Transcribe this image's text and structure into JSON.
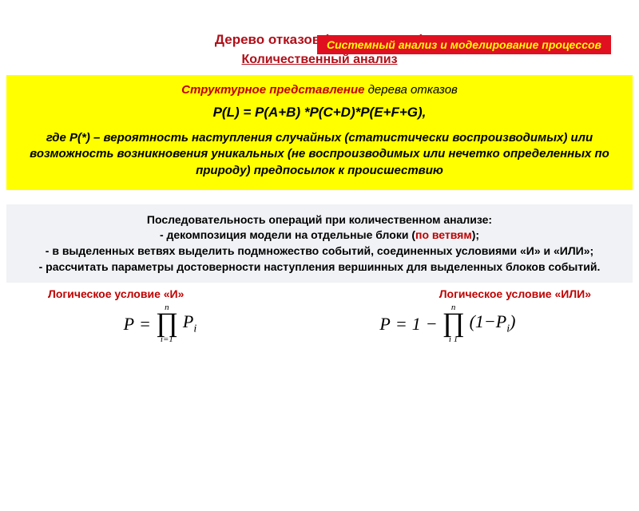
{
  "header": {
    "band_text": "Системный анализ и моделирование процессов",
    "band_bg": "#e01020",
    "band_fg": "#ffff00"
  },
  "titles": {
    "main": "Дерево отказов (продолжение)",
    "sub": "Количественный анализ",
    "color": "#b0101a"
  },
  "yellow_block": {
    "bg": "#ffff00",
    "struct_red": "Структурное представление",
    "struct_black": " дерева отказов",
    "formula": "P(L) = P(A+B) *P(C+D)*P(E+F+G),",
    "where_prefix": "где ",
    "where_bold": "P(*)",
    "where_text": " – вероятность наступления случайных (статистически воспроизводимых) или возможность возникновения уникальных (не воспроизводимых или нечетко определенных по природу) предпосылок к происшествию"
  },
  "gray_block": {
    "bg": "#f0f2f5",
    "line1": "Последовательность операций при количественном анализе:",
    "line2a": "- декомпозиция модели на отдельные блоки (",
    "line2b": "по ветвям",
    "line2c": ");",
    "line3": "- в выделенных ветвях выделить подмножество событий, соединенных условиями «И» и «ИЛИ»;",
    "line4": "- рассчитать параметры достоверности наступления вершинных для выделенных блоков событий."
  },
  "logic": {
    "and_label": "Логическое условие «И»",
    "or_label": "Логическое условие «ИЛИ»",
    "label_color": "#c00000"
  },
  "formulas": {
    "and": {
      "lhs": "P",
      "eq": "=",
      "prod_top": "n",
      "prod_bot": "i=1",
      "rhs": "P",
      "rhs_sub": "i"
    },
    "or": {
      "lhs": "P",
      "eq": "=",
      "one": "1",
      "minus": "−",
      "prod_top": "n",
      "prod_bot": "i  1",
      "open": "(1−",
      "p": "P",
      "psub": "i",
      "close": ")"
    }
  }
}
